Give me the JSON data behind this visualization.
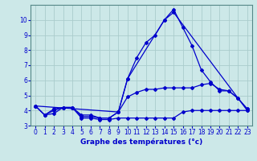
{
  "title": "Graphe des températures (°c)",
  "background_color": "#cce8e8",
  "grid_color": "#aacccc",
  "line_color": "#0000cc",
  "xlim": [
    -0.5,
    23.5
  ],
  "ylim": [
    3,
    11
  ],
  "xticks": [
    0,
    1,
    2,
    3,
    4,
    5,
    6,
    7,
    8,
    9,
    10,
    11,
    12,
    13,
    14,
    15,
    16,
    17,
    18,
    19,
    20,
    21,
    22,
    23
  ],
  "yticks": [
    3,
    4,
    5,
    6,
    7,
    8,
    9,
    10
  ],
  "line1_x": [
    0,
    1,
    2,
    3,
    4,
    5,
    6,
    7,
    8,
    9,
    10,
    11,
    12,
    13,
    14,
    15,
    16,
    17,
    18,
    19,
    20,
    21,
    22,
    23
  ],
  "line1_y": [
    4.3,
    3.7,
    3.8,
    4.2,
    4.2,
    3.5,
    3.5,
    3.4,
    3.4,
    3.5,
    3.5,
    3.5,
    3.5,
    3.5,
    3.5,
    3.5,
    3.9,
    4.0,
    4.0,
    4.0,
    4.0,
    4.0,
    4.0,
    4.0
  ],
  "line2_x": [
    0,
    1,
    2,
    3,
    4,
    5,
    6,
    7,
    8,
    9,
    10,
    11,
    12,
    13,
    14,
    15,
    16,
    17,
    18,
    19,
    20,
    21,
    22,
    23
  ],
  "line2_y": [
    4.3,
    3.7,
    4.0,
    4.2,
    4.2,
    3.7,
    3.7,
    3.5,
    3.5,
    3.9,
    4.9,
    5.2,
    5.4,
    5.4,
    5.5,
    5.5,
    5.5,
    5.5,
    5.7,
    5.8,
    5.4,
    5.3,
    4.8,
    4.1
  ],
  "line3_x": [
    0,
    1,
    2,
    3,
    4,
    5,
    6,
    7,
    8,
    9,
    10,
    11,
    12,
    13,
    14,
    15,
    16,
    17,
    18,
    19,
    20,
    21,
    22,
    23
  ],
  "line3_y": [
    4.3,
    3.7,
    4.1,
    4.2,
    4.2,
    3.6,
    3.6,
    3.5,
    3.5,
    3.9,
    6.1,
    7.5,
    8.5,
    9.0,
    10.0,
    10.7,
    9.5,
    8.3,
    6.7,
    5.9,
    5.3,
    5.3,
    4.8,
    4.1
  ],
  "line4_x": [
    0,
    9,
    10,
    14,
    15,
    23
  ],
  "line4_y": [
    4.3,
    3.9,
    6.1,
    10.0,
    10.5,
    4.0
  ]
}
